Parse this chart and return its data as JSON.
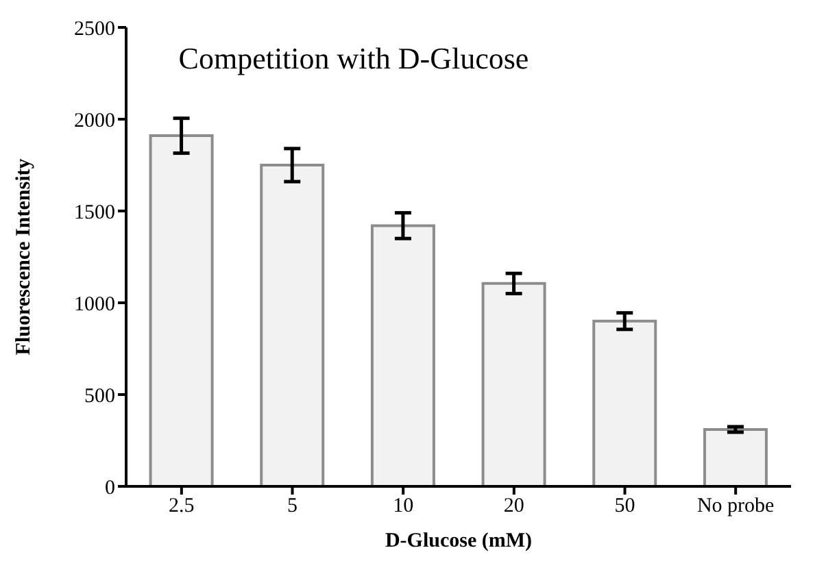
{
  "chart_data": {
    "type": "bar",
    "title": "Competition with D-Glucose",
    "xlabel": "D-Glucose (mM)",
    "ylabel": "Fluorescence Intensity",
    "categories": [
      "2.5",
      "5",
      "10",
      "20",
      "50",
      "No probe"
    ],
    "series": [
      {
        "color": "#f2f2f2",
        "values": [
          1910,
          1750,
          1420,
          1105,
          900,
          310
        ],
        "errors": [
          95,
          90,
          70,
          55,
          45,
          15
        ]
      }
    ],
    "ylim": [
      0,
      2500
    ],
    "yticks": [
      0,
      500,
      1000,
      1500,
      2000,
      2500
    ],
    "grid": false,
    "legend": false
  }
}
